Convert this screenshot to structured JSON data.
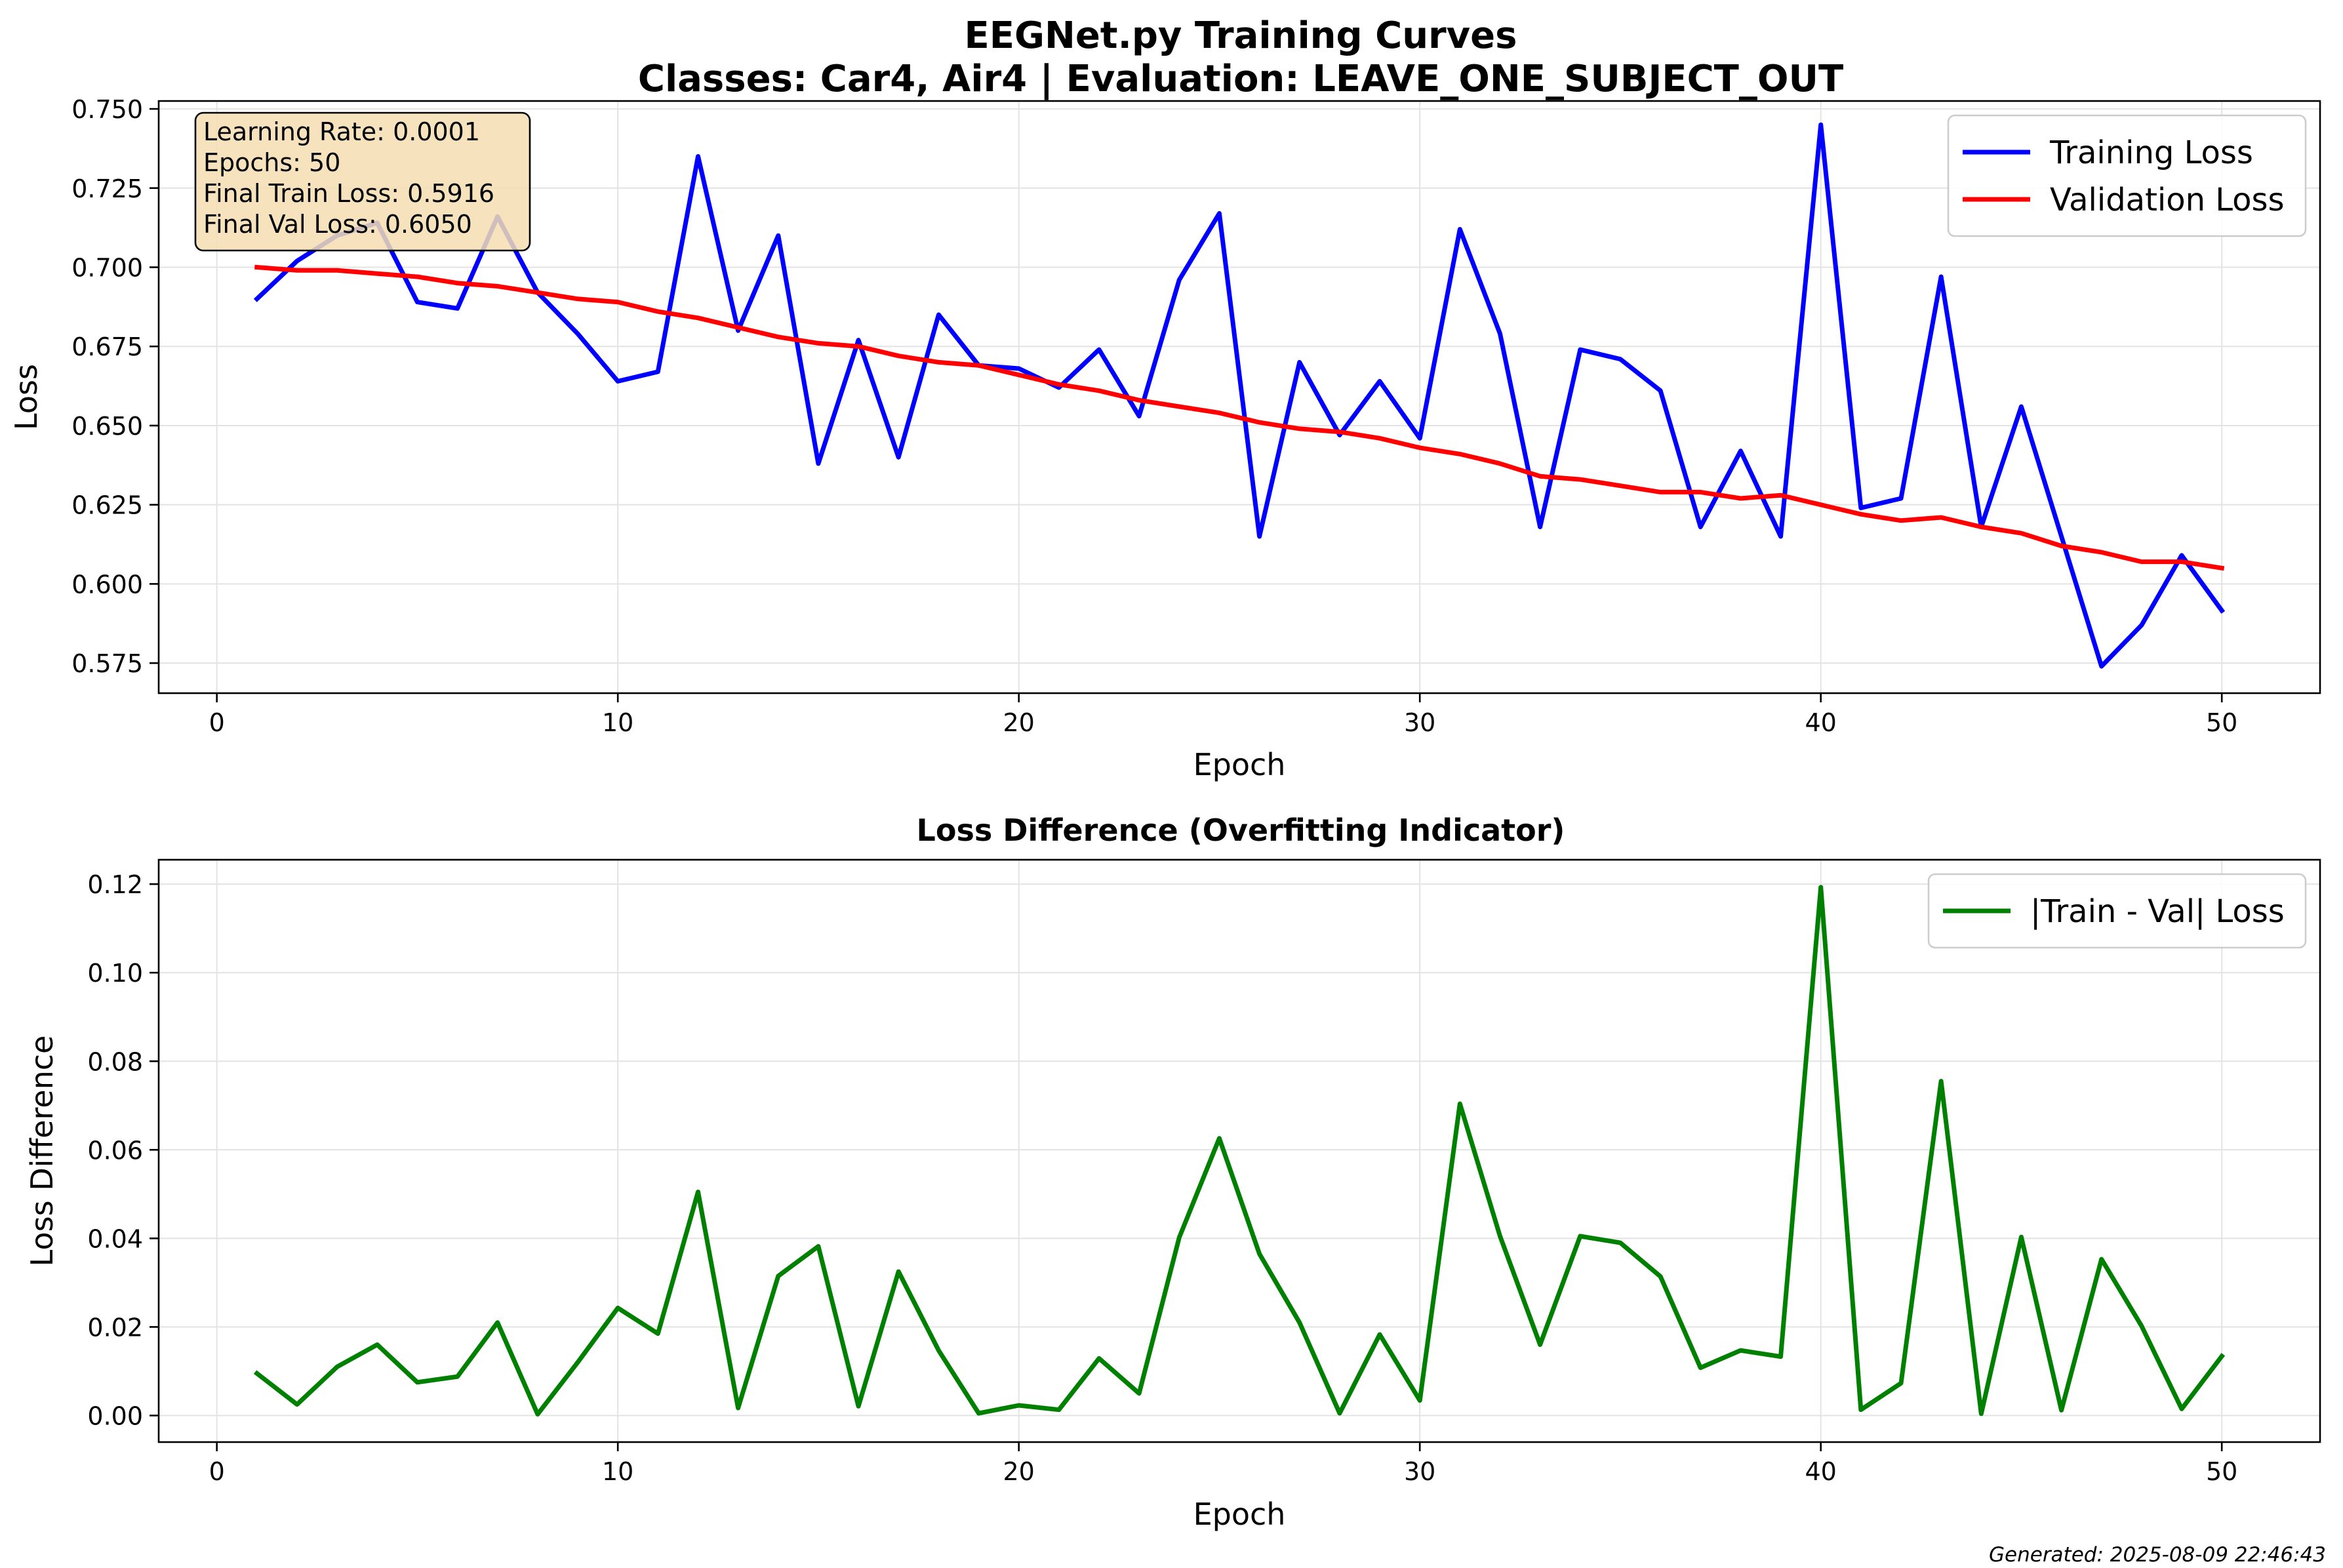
{
  "chart_data": [
    {
      "type": "line",
      "title": "EEGNet.py Training Curves\nClasses: Car4, Air4 | Evaluation: LEAVE_ONE_SUBJECT_OUT",
      "title_lines": [
        "EEGNet.py Training Curves",
        "Classes: Car4, Air4 | Evaluation: LEAVE_ONE_SUBJECT_OUT"
      ],
      "xlabel": "Epoch",
      "ylabel": "Loss",
      "xlim": [
        -1.45,
        52.45
      ],
      "ylim": [
        0.5655,
        0.7525
      ],
      "xticks": [
        0,
        10,
        20,
        30,
        40,
        50
      ],
      "yticks": [
        0.575,
        0.6,
        0.625,
        0.65,
        0.675,
        0.7,
        0.725,
        0.75
      ],
      "ytick_labels": [
        "0.575",
        "0.600",
        "0.625",
        "0.650",
        "0.675",
        "0.700",
        "0.725",
        "0.750"
      ],
      "grid": true,
      "legend_position": "top-right",
      "annotation": {
        "position": "top-left",
        "lines": [
          "Learning Rate: 0.0001",
          "Epochs: 50",
          "Final Train Loss: 0.5916",
          "Final Val Loss: 0.6050"
        ],
        "bg_color": "#f5deb3"
      },
      "x": [
        1,
        2,
        3,
        4,
        5,
        6,
        7,
        8,
        9,
        10,
        11,
        12,
        13,
        14,
        15,
        16,
        17,
        18,
        19,
        20,
        21,
        22,
        23,
        24,
        25,
        26,
        27,
        28,
        29,
        30,
        31,
        32,
        33,
        34,
        35,
        36,
        37,
        38,
        39,
        40,
        41,
        42,
        43,
        44,
        45,
        46,
        47,
        48,
        49,
        50
      ],
      "series": [
        {
          "name": "Training Loss",
          "color": "#0000ff",
          "values": [
            0.69,
            0.702,
            0.71,
            0.714,
            0.689,
            0.687,
            0.716,
            0.692,
            0.679,
            0.664,
            0.667,
            0.735,
            0.68,
            0.71,
            0.638,
            0.677,
            0.64,
            0.685,
            0.669,
            0.668,
            0.662,
            0.674,
            0.653,
            0.696,
            0.717,
            0.615,
            0.67,
            0.647,
            0.664,
            0.646,
            0.712,
            0.679,
            0.618,
            0.674,
            0.671,
            0.661,
            0.618,
            0.642,
            0.615,
            0.745,
            0.624,
            0.627,
            0.697,
            0.618,
            0.656,
            0.615,
            0.574,
            0.587,
            0.609,
            0.5916
          ]
        },
        {
          "name": "Validation Loss",
          "color": "#ff0000",
          "values": [
            0.7,
            0.699,
            0.699,
            0.698,
            0.697,
            0.695,
            0.694,
            0.692,
            0.69,
            0.689,
            0.686,
            0.684,
            0.681,
            0.678,
            0.676,
            0.675,
            0.672,
            0.67,
            0.669,
            0.666,
            0.663,
            0.661,
            0.658,
            0.656,
            0.654,
            0.651,
            0.649,
            0.648,
            0.646,
            0.643,
            0.641,
            0.638,
            0.634,
            0.633,
            0.631,
            0.629,
            0.629,
            0.627,
            0.628,
            0.625,
            0.622,
            0.62,
            0.621,
            0.618,
            0.616,
            0.612,
            0.61,
            0.607,
            0.607,
            0.605
          ]
        }
      ]
    },
    {
      "type": "line",
      "title": "Loss Difference (Overfitting Indicator)",
      "xlabel": "Epoch",
      "ylabel": "Loss Difference",
      "xlim": [
        -1.45,
        52.45
      ],
      "ylim": [
        -0.006,
        0.1255
      ],
      "xticks": [
        0,
        10,
        20,
        30,
        40,
        50
      ],
      "yticks": [
        0.0,
        0.02,
        0.04,
        0.06,
        0.08,
        0.1,
        0.12
      ],
      "ytick_labels": [
        "0.00",
        "0.02",
        "0.04",
        "0.06",
        "0.08",
        "0.10",
        "0.12"
      ],
      "grid": true,
      "legend_position": "top-right",
      "x": [
        1,
        2,
        3,
        4,
        5,
        6,
        7,
        8,
        9,
        10,
        11,
        12,
        13,
        14,
        15,
        16,
        17,
        18,
        19,
        20,
        21,
        22,
        23,
        24,
        25,
        26,
        27,
        28,
        29,
        30,
        31,
        32,
        33,
        34,
        35,
        36,
        37,
        38,
        39,
        40,
        41,
        42,
        43,
        44,
        45,
        46,
        47,
        48,
        49,
        50
      ],
      "series": [
        {
          "name": "|Train - Val| Loss",
          "color": "#008000",
          "values": [
            0.0095,
            0.0025,
            0.011,
            0.016,
            0.0075,
            0.0088,
            0.021,
            0.0003,
            0.012,
            0.0243,
            0.0185,
            0.0505,
            0.0017,
            0.0315,
            0.0382,
            0.0021,
            0.0325,
            0.0147,
            0.0005,
            0.0023,
            0.0013,
            0.0129,
            0.005,
            0.0402,
            0.0626,
            0.0365,
            0.021,
            0.0005,
            0.0183,
            0.0034,
            0.0704,
            0.0405,
            0.016,
            0.0405,
            0.039,
            0.0314,
            0.0108,
            0.0147,
            0.0133,
            0.1193,
            0.0013,
            0.0073,
            0.0755,
            0.0004,
            0.0403,
            0.0012,
            0.0353,
            0.0202,
            0.0015,
            0.0134
          ]
        }
      ]
    }
  ],
  "footer": "Generated: 2025-08-09 22:46:43"
}
